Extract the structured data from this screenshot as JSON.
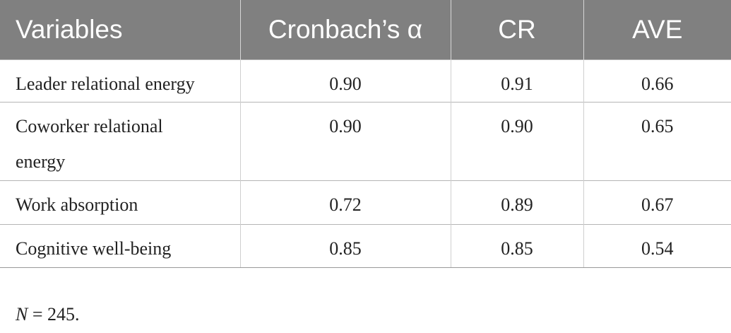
{
  "table": {
    "headers": [
      "Variables",
      "Cronbach’s α",
      "CR",
      "AVE"
    ],
    "rows": [
      [
        "Leader relational energy",
        "0.90",
        "0.91",
        "0.66"
      ],
      [
        "Coworker relational energy",
        "0.90",
        "0.90",
        "0.65"
      ],
      [
        "Work absorption",
        "0.72",
        "0.89",
        "0.67"
      ],
      [
        "Cognitive well-being",
        "0.85",
        "0.85",
        "0.54"
      ]
    ]
  },
  "note": {
    "var": "N",
    "text": " = 245."
  }
}
